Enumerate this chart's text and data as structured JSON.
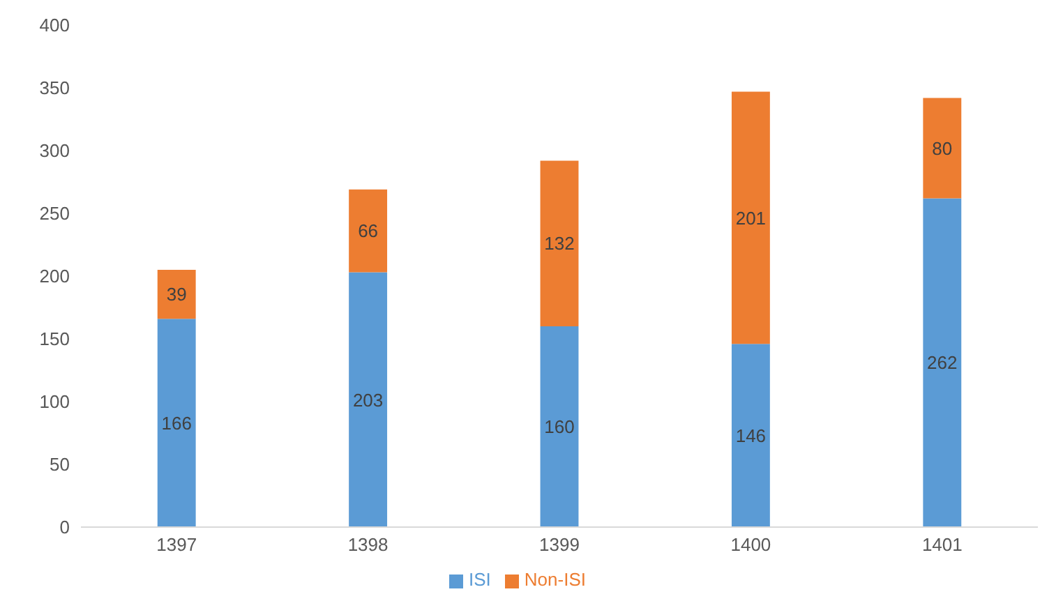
{
  "chart_data": {
    "type": "bar",
    "stacked": true,
    "categories": [
      "1397",
      "1398",
      "1399",
      "1400",
      "1401"
    ],
    "series": [
      {
        "name": "ISI",
        "color": "#5b9bd5",
        "values": [
          166,
          203,
          160,
          146,
          262
        ]
      },
      {
        "name": "Non-ISI",
        "color": "#ed7d31",
        "values": [
          39,
          66,
          132,
          201,
          80
        ]
      }
    ],
    "ylim": [
      0,
      400
    ],
    "yticks": [
      0,
      50,
      100,
      150,
      200,
      250,
      300,
      350,
      400
    ],
    "grid": false,
    "legend": "bottom",
    "data_labels": true
  }
}
